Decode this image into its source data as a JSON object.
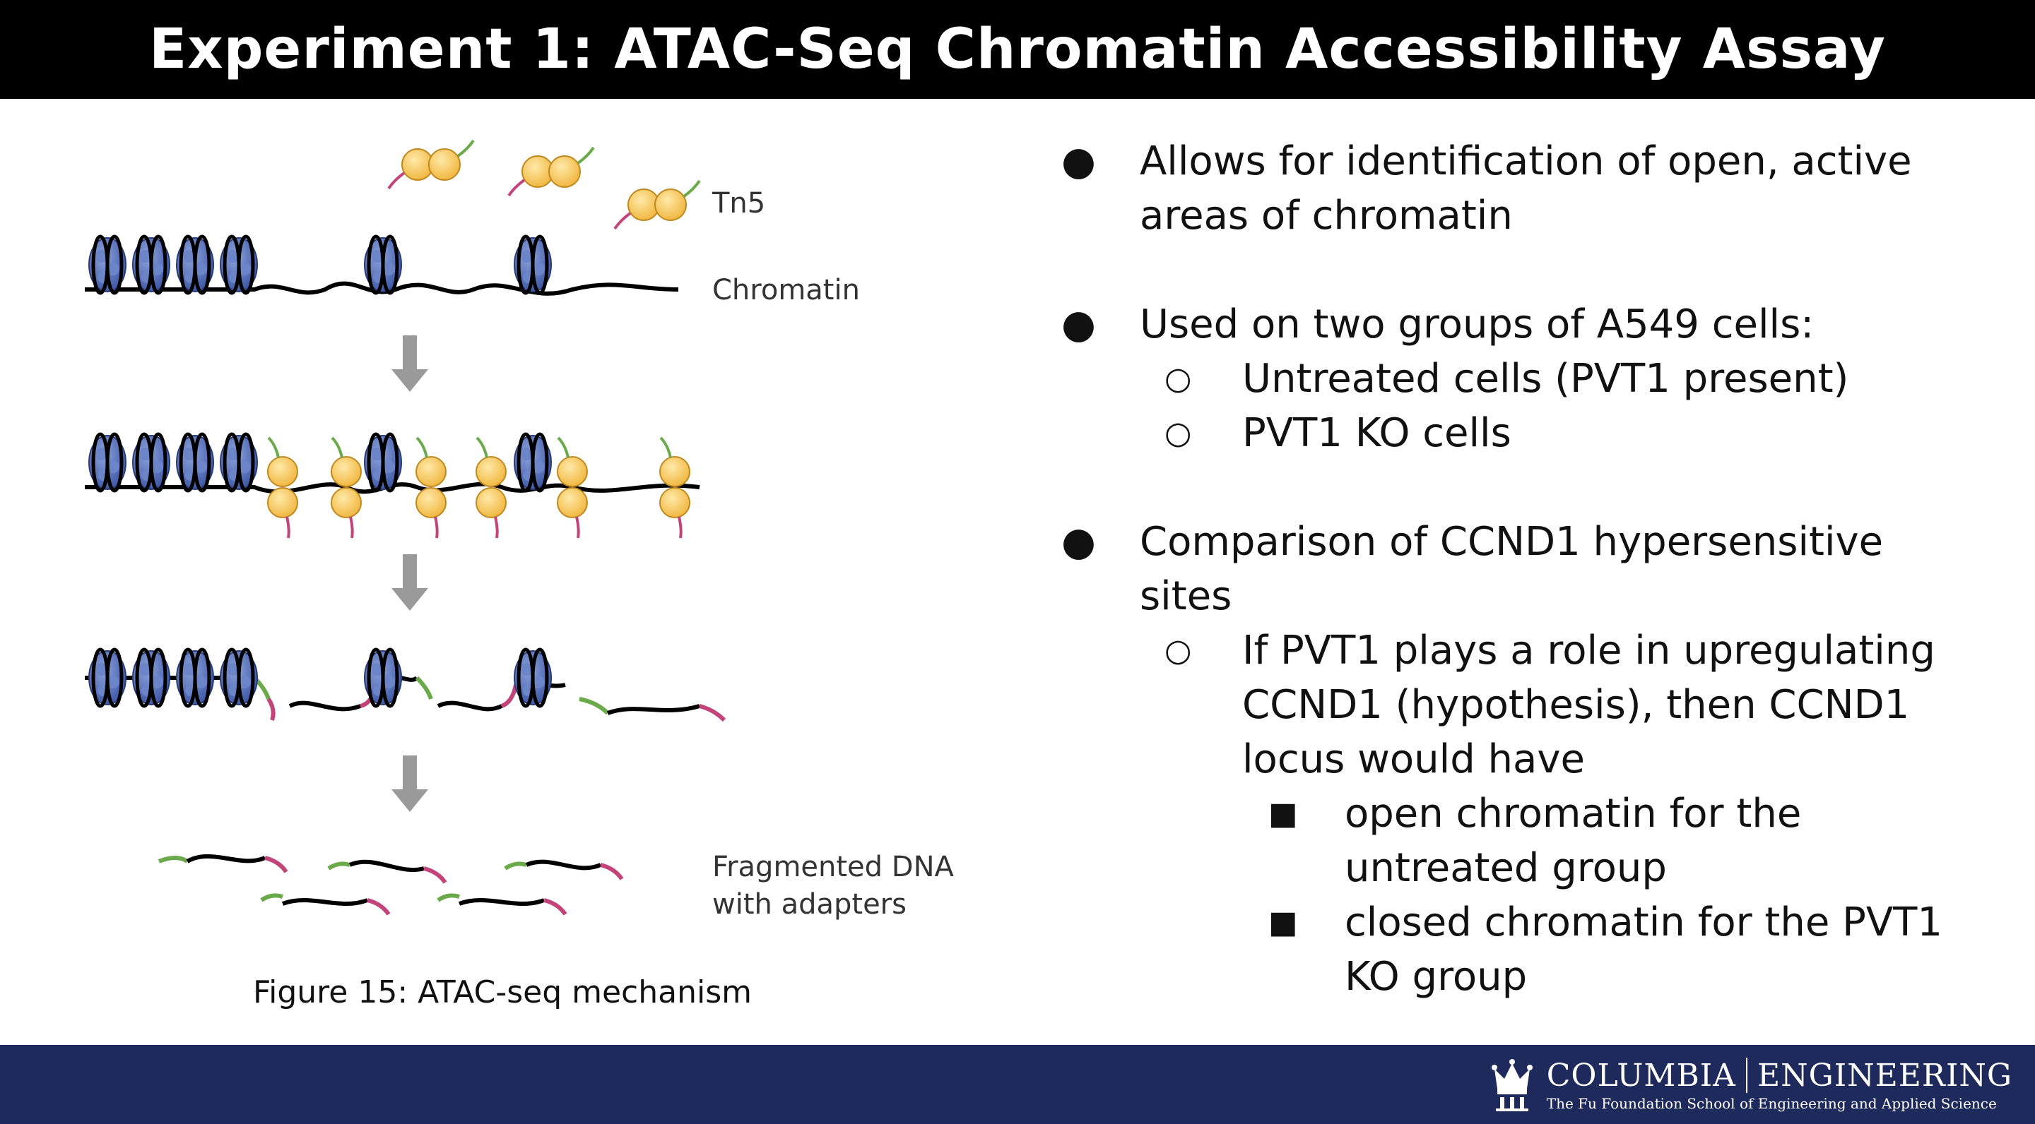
{
  "slide": {
    "title": "Experiment 1: ATAC-Seq Chromatin Accessibility Assay"
  },
  "figure": {
    "labels": {
      "tn5": "Tn5",
      "chromatin": "Chromatin",
      "fragmented_line1": "Fragmented DNA",
      "fragmented_line2": "with adapters"
    },
    "caption": "Figure 15: ATAC-seq mechanism"
  },
  "bullets": {
    "b1": "Allows for identification of open, active areas of chromatin",
    "b2": "Used on two groups of A549 cells:",
    "b2_1": "Untreated cells (PVT1 present)",
    "b2_2": "PVT1 KO cells",
    "b3": "Comparison of CCND1 hypersensitive sites",
    "b3_1": "If PVT1 plays a role in upregulating CCND1 (hypothesis), then CCND1 locus would have",
    "b3_1_1": "open chromatin for the untreated group",
    "b3_1_2": "closed chromatin for the PVT1 KO group",
    "markers": {
      "level1": "●",
      "level2": "○",
      "level3": "■"
    }
  },
  "footer": {
    "brand_left": "COLUMBIA",
    "brand_right": "ENGINEERING",
    "subtitle": "The Fu Foundation School of Engineering and Applied Science"
  },
  "colors": {
    "title_bg": "#000000",
    "footer_bg": "#1e2a5c",
    "tn5_yellow": "#f5c542",
    "adapter_green": "#6aaa4a",
    "adapter_pink": "#c2447a",
    "nucleosome_blue": "#4a64b0",
    "arrow_gray": "#9a9a9a"
  }
}
